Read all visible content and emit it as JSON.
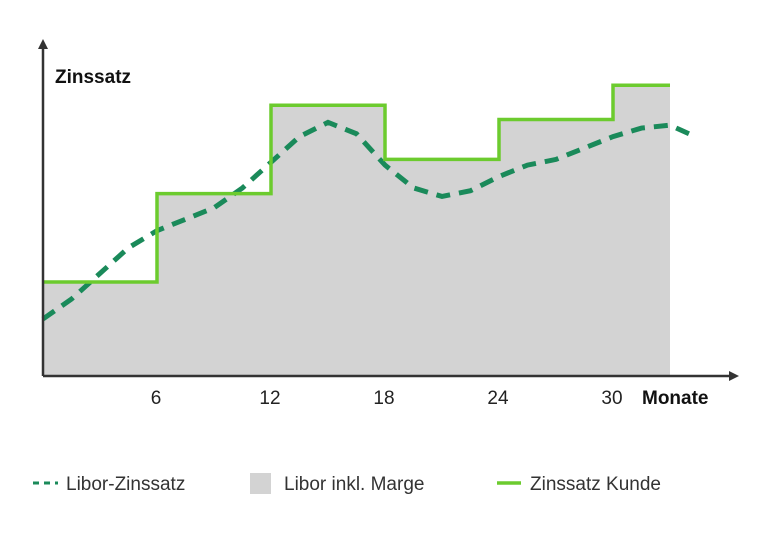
{
  "chart_data": {
    "type": "line",
    "title": "",
    "ylabel": "Zinssatz",
    "xlabel": "Monate",
    "xlim": [
      0,
      34.5
    ],
    "ylim": [
      0,
      12
    ],
    "x_ticks": [
      6,
      12,
      18,
      24,
      30
    ],
    "grid": false,
    "legend_position": "bottom",
    "series": [
      {
        "name": "Libor-Zinssatz",
        "style": "dashed",
        "color": "#1a8a5a",
        "x": [
          0,
          1.5,
          3,
          4.5,
          6,
          7.5,
          9,
          10.5,
          12,
          13.5,
          15,
          16.5,
          18,
          19.5,
          21,
          22.5,
          24,
          25.5,
          27,
          28.5,
          30,
          31.5,
          33,
          34
        ],
        "y": [
          2.0,
          2.7,
          3.6,
          4.5,
          5.1,
          5.5,
          5.9,
          6.6,
          7.5,
          8.4,
          8.9,
          8.5,
          7.4,
          6.6,
          6.3,
          6.5,
          7.0,
          7.4,
          7.6,
          8.0,
          8.4,
          8.7,
          8.8,
          8.5
        ]
      },
      {
        "name": "Libor inkl. Marge",
        "style": "area",
        "color": "#d3d3d3",
        "step_edges": [
          0,
          6,
          12,
          18,
          24,
          30,
          33
        ],
        "values": [
          3.3,
          6.4,
          9.5,
          7.6,
          9.0,
          10.2
        ]
      },
      {
        "name": "Zinssatz Kunde",
        "style": "step",
        "color": "#6ccb2e",
        "step_edges": [
          0,
          6,
          12,
          18,
          24,
          30,
          33
        ],
        "values": [
          3.3,
          6.4,
          9.5,
          7.6,
          9.0,
          10.2
        ]
      }
    ]
  }
}
